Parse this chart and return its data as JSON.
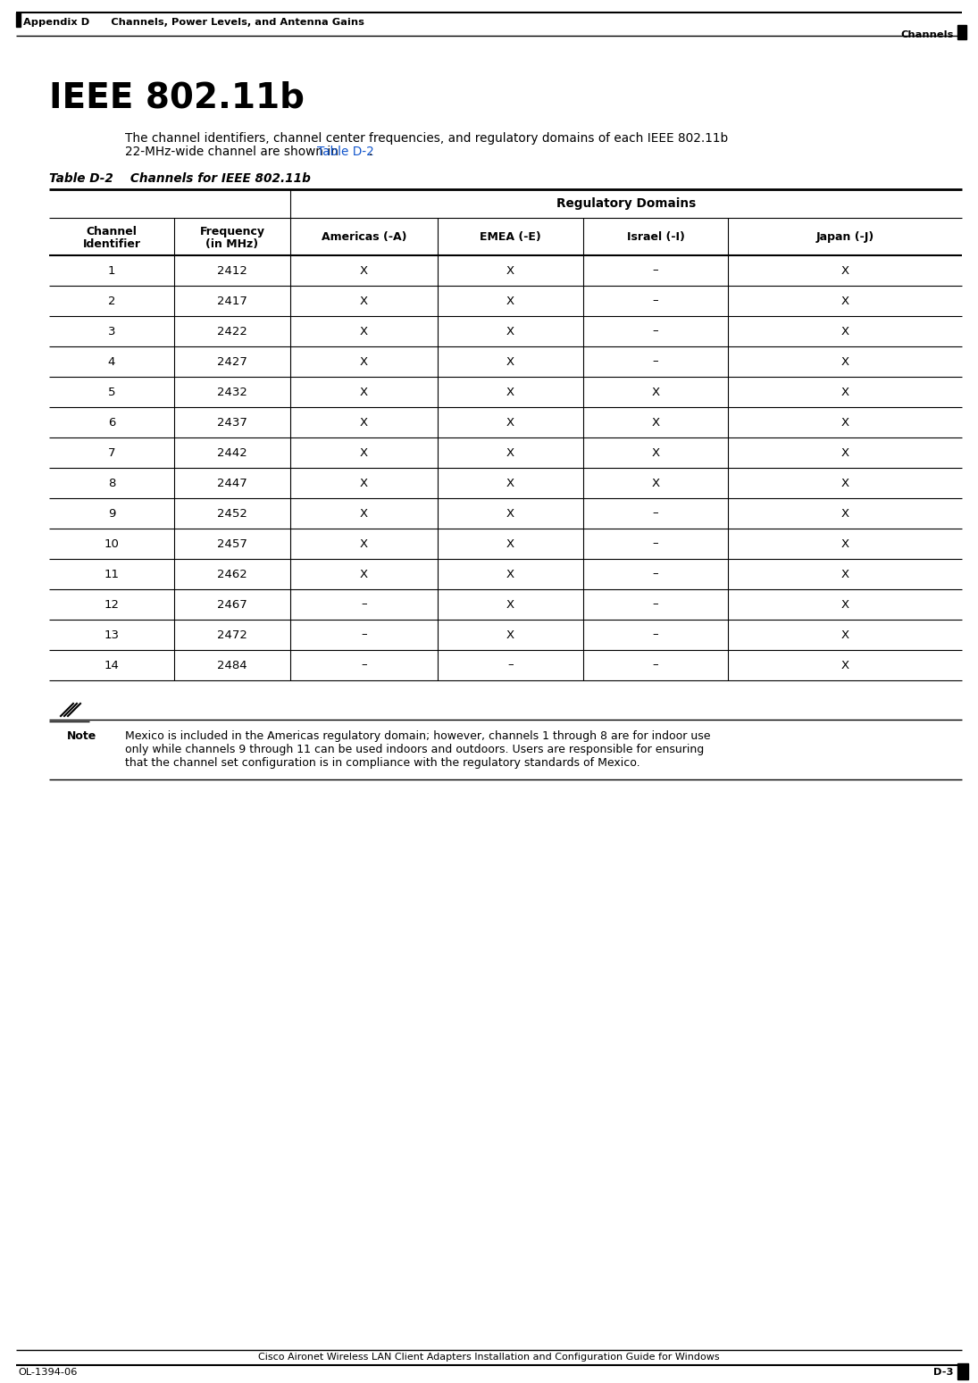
{
  "page_header_left": "Appendix D      Channels, Power Levels, and Antenna Gains",
  "page_header_right": "Channels",
  "section_title": "IEEE 802.11b",
  "intro_line1": "The channel identifiers, channel center frequencies, and regulatory domains of each IEEE 802.11b",
  "intro_line2_pre": "22-MHz-wide channel are shown in ",
  "intro_line2_link": "Table D-2",
  "intro_line2_post": ".",
  "table_caption": "Table D-2    Channels for IEEE 802.11b",
  "col_headers_row1_left": [
    "Channel\nIdentifier",
    "Frequency\n(in MHz)"
  ],
  "col_headers_row2": [
    "Americas (-A)",
    "EMEA (-E)",
    "Israel (-I)",
    "Japan (-J)"
  ],
  "regulatory_domains_header": "Regulatory Domains",
  "rows": [
    [
      "1",
      "2412",
      "X",
      "X",
      "–",
      "X"
    ],
    [
      "2",
      "2417",
      "X",
      "X",
      "–",
      "X"
    ],
    [
      "3",
      "2422",
      "X",
      "X",
      "–",
      "X"
    ],
    [
      "4",
      "2427",
      "X",
      "X",
      "–",
      "X"
    ],
    [
      "5",
      "2432",
      "X",
      "X",
      "X",
      "X"
    ],
    [
      "6",
      "2437",
      "X",
      "X",
      "X",
      "X"
    ],
    [
      "7",
      "2442",
      "X",
      "X",
      "X",
      "X"
    ],
    [
      "8",
      "2447",
      "X",
      "X",
      "X",
      "X"
    ],
    [
      "9",
      "2452",
      "X",
      "X",
      "–",
      "X"
    ],
    [
      "10",
      "2457",
      "X",
      "X",
      "–",
      "X"
    ],
    [
      "11",
      "2462",
      "X",
      "X",
      "–",
      "X"
    ],
    [
      "12",
      "2467",
      "–",
      "X",
      "–",
      "X"
    ],
    [
      "13",
      "2472",
      "–",
      "X",
      "–",
      "X"
    ],
    [
      "14",
      "2484",
      "–",
      "–",
      "–",
      "X"
    ]
  ],
  "note_label": "Note",
  "note_line1": "Mexico is included in the Americas regulatory domain; however, channels 1 through 8 are for indoor use",
  "note_line2": "only while channels 9 through 11 can be used indoors and outdoors. Users are responsible for ensuring",
  "note_line3": "that the channel set configuration is in compliance with the regulatory standards of Mexico.",
  "footer_center": "Cisco Aironet Wireless LAN Client Adapters Installation and Configuration Guide for Windows",
  "footer_left": "OL-1394-06",
  "footer_right": "D-3",
  "bg_color": "#ffffff",
  "text_color": "#000000",
  "table_link_color": "#1155CC"
}
